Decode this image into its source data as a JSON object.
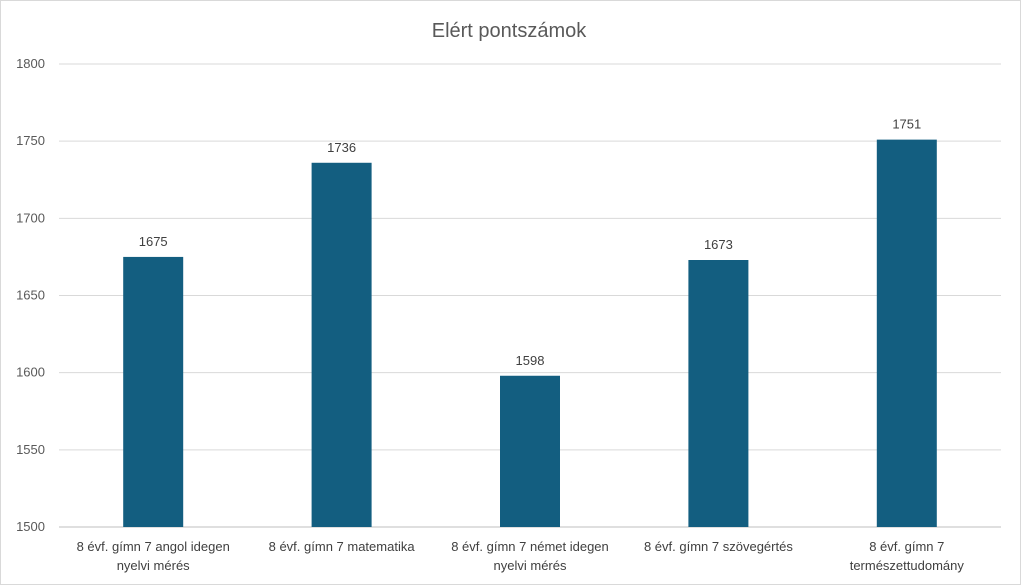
{
  "chart_data": {
    "type": "bar",
    "title": "Elért pontszámok",
    "categories": [
      [
        "8 évf. gímn 7 angol idegen",
        "nyelvi mérés"
      ],
      [
        "8 évf. gímn 7 matematika"
      ],
      [
        "8 évf. gímn 7 német idegen",
        "nyelvi mérés"
      ],
      [
        "8 évf. gímn 7 szövegértés"
      ],
      [
        "8 évf. gímn 7",
        "természettudomány"
      ]
    ],
    "values": [
      1675,
      1736,
      1598,
      1673,
      1751
    ],
    "ylim": [
      1500,
      1800
    ],
    "yticks": [
      1500,
      1550,
      1600,
      1650,
      1700,
      1750,
      1800
    ],
    "grid": true,
    "bar_color": "#135e80"
  }
}
